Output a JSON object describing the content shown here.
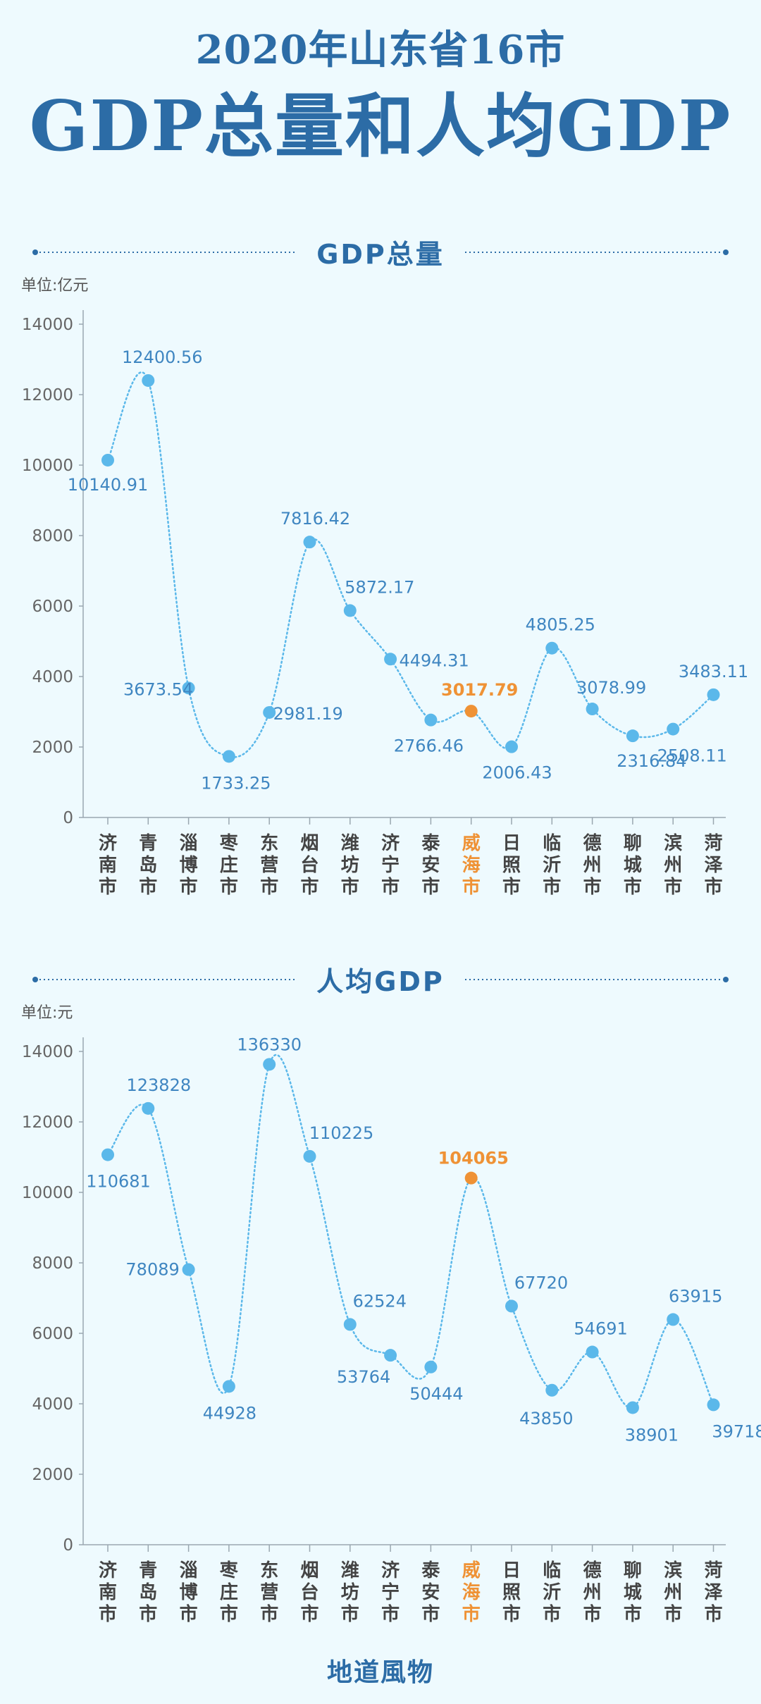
{
  "header": {
    "title_line1": "2020年山东省16市",
    "title_line2": "GDP总量和人均GDP"
  },
  "footer": {
    "source": "地道風物"
  },
  "colors": {
    "primary": "#2c6ca6",
    "point": "#5bb8ea",
    "label": "#3f86c1",
    "highlight": "#ef9235",
    "axis_text": "#666666",
    "category_text": "#444444"
  },
  "chart_data": [
    {
      "type": "line",
      "title": "GDP总量",
      "unit_label": "单位:亿元",
      "ylim": [
        0,
        14000
      ],
      "yticks": [
        0,
        2000,
        4000,
        6000,
        8000,
        10000,
        12000,
        14000
      ],
      "categories": [
        "济南市",
        "青岛市",
        "淄博市",
        "枣庄市",
        "东营市",
        "烟台市",
        "潍坊市",
        "济宁市",
        "泰安市",
        "威海市",
        "日照市",
        "临沂市",
        "德州市",
        "聊城市",
        "滨州市",
        "菏泽市"
      ],
      "values": [
        10140.91,
        12400.56,
        3673.54,
        1733.25,
        2981.19,
        7816.42,
        5872.17,
        4494.31,
        2766.46,
        3017.79,
        2006.43,
        4805.25,
        3078.99,
        2316.84,
        2508.11,
        3483.11
      ],
      "value_labels": [
        "10140.91",
        "12400.56",
        "3673.54",
        "1733.25",
        "2981.19",
        "7816.42",
        "5872.17",
        "4494.31",
        "2766.46",
        "3017.79",
        "2006.43",
        "4805.25",
        "3078.99",
        "2316.84",
        "2508.11",
        "3483.11"
      ],
      "highlight_index": 9,
      "line_style": "dotted",
      "grid": false
    },
    {
      "type": "line",
      "title": "人均GDP",
      "unit_label": "单位:元",
      "ylim": [
        0,
        14000
      ],
      "yticks": [
        0,
        2000,
        4000,
        6000,
        8000,
        10000,
        12000,
        14000
      ],
      "categories": [
        "济南市",
        "青岛市",
        "淄博市",
        "枣庄市",
        "东营市",
        "烟台市",
        "潍坊市",
        "济宁市",
        "泰安市",
        "威海市",
        "日照市",
        "临沂市",
        "德州市",
        "聊城市",
        "滨州市",
        "菏泽市"
      ],
      "values": [
        110681,
        123828,
        78089,
        44928,
        136330,
        110225,
        62524,
        53764,
        50444,
        104065,
        67720,
        43850,
        54691,
        38901,
        63915,
        39718
      ],
      "value_labels": [
        "110681",
        "123828",
        "78089",
        "44928",
        "136330",
        "110225",
        "62524",
        "53764",
        "50444",
        "104065",
        "67720",
        "43850",
        "54691",
        "38901",
        "63915",
        "39718"
      ],
      "highlight_index": 9,
      "line_style": "dotted",
      "grid": false
    }
  ]
}
